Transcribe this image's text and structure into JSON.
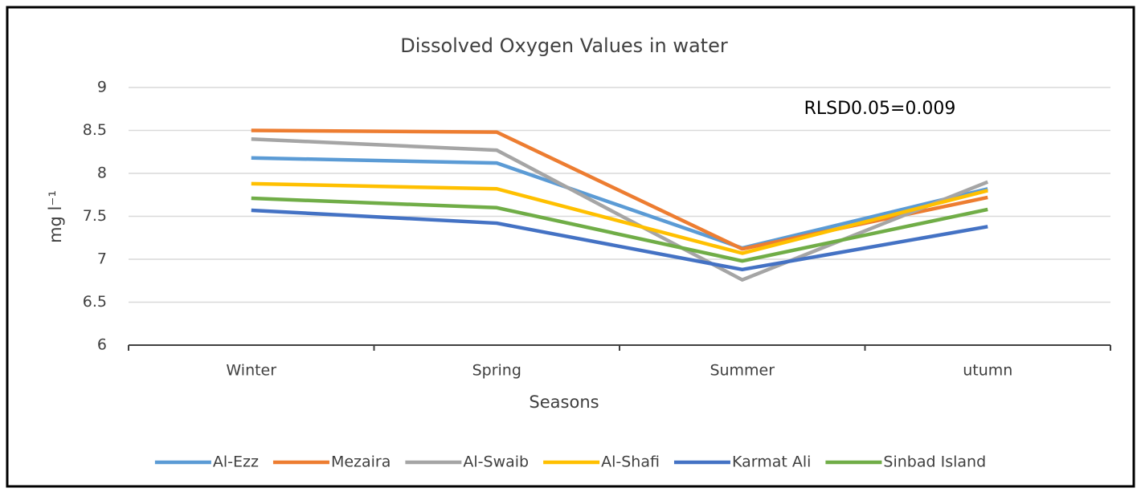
{
  "chart_data": {
    "type": "line",
    "title": "Dissolved Oxygen Values in water",
    "x_label": "Seasons",
    "y_label": "mg l⁻¹",
    "annotation": "RLSD0.05=0.009",
    "categories": [
      "Winter",
      "Spring",
      "Summer",
      "utumn"
    ],
    "ylim": [
      6,
      9
    ],
    "yticks": [
      6,
      6.5,
      7,
      7.5,
      8,
      8.5,
      9
    ],
    "grid": true,
    "legend": "bottom",
    "series": [
      {
        "name": "Al-Ezz",
        "color": "#5b9bd5",
        "values": [
          8.18,
          8.12,
          7.13,
          7.82
        ]
      },
      {
        "name": "Mezaira",
        "color": "#ed7d31",
        "values": [
          8.5,
          8.48,
          7.12,
          7.72
        ]
      },
      {
        "name": "Al-Swaib",
        "color": "#a5a5a5",
        "values": [
          8.4,
          8.27,
          6.76,
          7.9
        ]
      },
      {
        "name": "Al-Shafi",
        "color": "#ffc000",
        "values": [
          7.88,
          7.82,
          7.07,
          7.8
        ]
      },
      {
        "name": "Karmat Ali",
        "color": "#4472c4",
        "values": [
          7.57,
          7.42,
          6.88,
          7.38
        ]
      },
      {
        "name": "Sinbad Island",
        "color": "#70ad47",
        "values": [
          7.71,
          7.6,
          6.98,
          7.58
        ]
      }
    ]
  }
}
